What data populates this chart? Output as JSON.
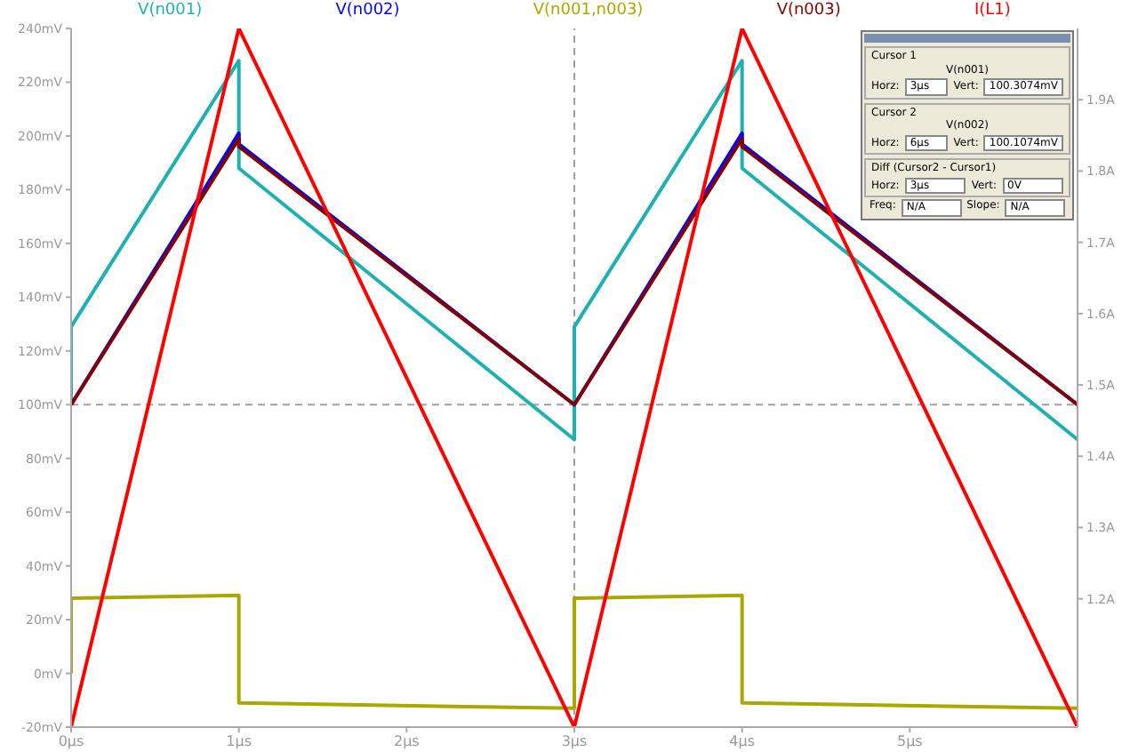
{
  "chart_data": {
    "type": "line",
    "series": [
      {
        "name": "V(n001)",
        "color": "#20b0b0",
        "x": [
          0,
          0,
          1,
          1,
          3,
          3,
          4,
          4,
          6
        ],
        "values": [
          100,
          129,
          228,
          188,
          87,
          129,
          228,
          188,
          87
        ]
      },
      {
        "name": "V(n002)",
        "color": "#0000ff",
        "x": [
          0,
          1,
          1,
          3,
          4,
          4,
          6
        ],
        "values": [
          100,
          201,
          197,
          100,
          201,
          197,
          100
        ]
      },
      {
        "name": "V(n001,n003)",
        "color": "#a8a800",
        "x": [
          0,
          0,
          1,
          1,
          3,
          3,
          4,
          4,
          6
        ],
        "values": [
          0,
          28,
          29,
          -11,
          -13,
          28,
          29,
          -11,
          -13
        ]
      },
      {
        "name": "V(n003)",
        "color": "#800000",
        "x": [
          0,
          1,
          1,
          3,
          4,
          4,
          6
        ],
        "values": [
          100,
          199,
          196,
          100,
          199,
          196,
          100
        ]
      },
      {
        "name": "I(L1)",
        "color": "#ff0000",
        "axis": "y2",
        "x": [
          0,
          1,
          3,
          4,
          6
        ],
        "values": [
          1.02,
          2.0,
          1.02,
          2.0,
          1.02
        ]
      }
    ],
    "xlim": [
      0,
      6
    ],
    "xticks": [
      {
        "value": 0,
        "label": "0µs"
      },
      {
        "value": 1,
        "label": "1µs"
      },
      {
        "value": 2,
        "label": "2µs"
      },
      {
        "value": 3,
        "label": "3µs"
      },
      {
        "value": 4,
        "label": "4µs"
      },
      {
        "value": 5,
        "label": "5µs"
      }
    ],
    "ylim": [
      -20,
      240
    ],
    "yticks": [
      {
        "value": -20,
        "label": "-20mV"
      },
      {
        "value": 0,
        "label": "0mV"
      },
      {
        "value": 20,
        "label": "20mV"
      },
      {
        "value": 40,
        "label": "40mV"
      },
      {
        "value": 60,
        "label": "60mV"
      },
      {
        "value": 80,
        "label": "80mV"
      },
      {
        "value": 100,
        "label": "100mV"
      },
      {
        "value": 120,
        "label": "120mV"
      },
      {
        "value": 140,
        "label": "140mV"
      },
      {
        "value": 160,
        "label": "160mV"
      },
      {
        "value": 180,
        "label": "180mV"
      },
      {
        "value": 200,
        "label": "200mV"
      },
      {
        "value": 220,
        "label": "220mV"
      },
      {
        "value": 240,
        "label": "240mV"
      }
    ],
    "y2lim": [
      1.02,
      2.0
    ],
    "y2ticks": [
      {
        "value": 1.2,
        "label": "1.2A"
      },
      {
        "value": 1.3,
        "label": "1.3A"
      },
      {
        "value": 1.4,
        "label": "1.4A"
      },
      {
        "value": 1.5,
        "label": "1.5A"
      },
      {
        "value": 1.6,
        "label": "1.6A"
      },
      {
        "value": 1.7,
        "label": "1.7A"
      },
      {
        "value": 1.8,
        "label": "1.8A"
      },
      {
        "value": 1.9,
        "label": "1.9A"
      }
    ],
    "ref_lines": [
      {
        "axis": "x",
        "value": 3,
        "color": "#a0a0a0",
        "line_style": "dashed"
      },
      {
        "axis": "y",
        "value": 100,
        "color": "#a0a0a0",
        "line_style": "dashed"
      }
    ],
    "legend": "top",
    "marker": "none",
    "line_style": "solid",
    "annotations": [
      "Cursor 1",
      "V(n001)",
      "Horz:",
      "3µs",
      "Vert:",
      "100.3074mV",
      "Cursor 2",
      "V(n002)",
      "Horz:",
      "6µs",
      "Vert:",
      "100.1074mV",
      "Diff (Cursor2 - Cursor1)",
      "Horz:",
      "3µs",
      "Vert:",
      "0V",
      "Freq:",
      "N/A",
      "Slope:",
      "N/A"
    ]
  }
}
